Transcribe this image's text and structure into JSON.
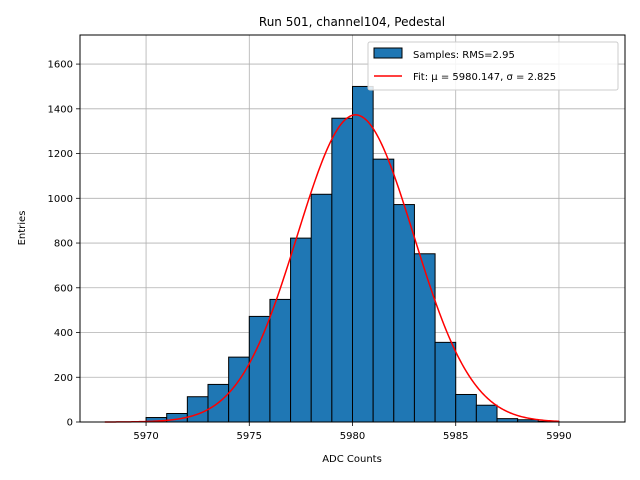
{
  "chart_data": {
    "type": "bar",
    "title": "Run 501, channel104, Pedestal",
    "xlabel": "ADC Counts",
    "ylabel": "Entries",
    "xlim": [
      5966.8,
      5993.2
    ],
    "ylim": [
      0,
      1730
    ],
    "xticks": [
      5970,
      5975,
      5980,
      5985,
      5990
    ],
    "yticks": [
      0,
      200,
      400,
      600,
      800,
      1000,
      1200,
      1400,
      1600
    ],
    "grid": true,
    "legend_position": "top-right",
    "bar_color": "#1f77b4",
    "bar_edge_color": "#000000",
    "fit_color": "#ff0000",
    "series": [
      {
        "name": "Samples: RMS=2.95",
        "type": "histogram",
        "bin_width": 1,
        "bin_starts": [
          5970,
          5971,
          5972,
          5973,
          5974,
          5975,
          5976,
          5977,
          5978,
          5979,
          5980,
          5981,
          5982,
          5983,
          5984,
          5985,
          5986,
          5987,
          5988,
          5989
        ],
        "values": [
          20,
          38,
          113,
          168,
          290,
          472,
          548,
          822,
          1018,
          1358,
          1500,
          1175,
          972,
          752,
          356,
          123,
          75,
          15,
          10,
          3
        ]
      },
      {
        "name": "Fit: μ = 5980.147, σ = 2.825",
        "type": "gaussian",
        "mean": 5980.147,
        "sigma": 2.825,
        "amplitude": 1373,
        "x_range": [
          5968,
          5990
        ]
      }
    ]
  }
}
